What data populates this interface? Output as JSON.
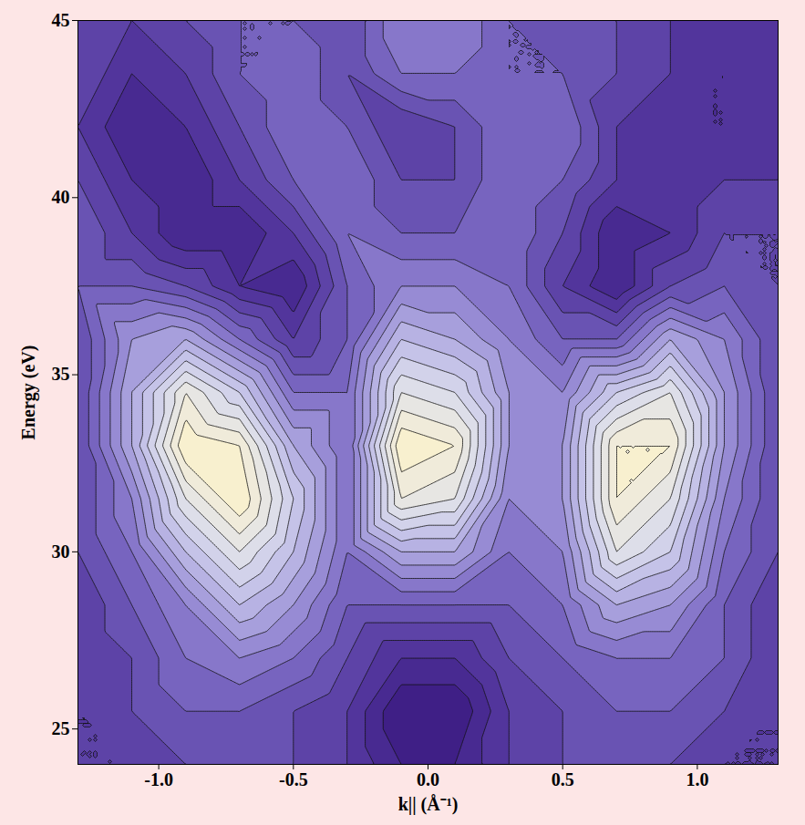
{
  "chart_data": {
    "type": "contour",
    "x_label": "k|| (Å⁻¹)",
    "y_label": "Energy (eV)",
    "xlim": [
      -1.3,
      1.3
    ],
    "ylim": [
      24,
      45
    ],
    "xticks": [
      {
        "value": -1,
        "label": "-1.0"
      },
      {
        "value": -0.5,
        "label": "-0.5"
      },
      {
        "value": 0,
        "label": "0.0"
      },
      {
        "value": 0.5,
        "label": "0.5"
      },
      {
        "value": 1,
        "label": "1.0"
      }
    ],
    "yticks": [
      25,
      30,
      35,
      40,
      45
    ],
    "x": [
      -1.3,
      -1.1,
      -0.9,
      -0.7,
      -0.5,
      -0.3,
      -0.1,
      0.1,
      0.3,
      0.5,
      0.7,
      0.9,
      1.1,
      1.3
    ],
    "y": [
      24,
      25.5,
      27,
      28.5,
      30,
      31.5,
      33,
      34.5,
      36,
      37.5,
      39,
      40.5,
      42,
      43.5,
      45
    ],
    "values": [
      [
        3,
        3,
        3.5,
        3.5,
        3.5,
        3,
        2,
        2,
        3,
        3.5,
        3.5,
        3.5,
        3,
        3
      ],
      [
        3,
        3.5,
        4,
        4,
        3.5,
        3,
        1.5,
        1.5,
        3,
        3.5,
        4,
        4,
        3.5,
        3
      ],
      [
        3,
        3.5,
        4.5,
        5,
        4.5,
        3.5,
        2.5,
        2.5,
        3.5,
        4,
        4.5,
        4.5,
        4,
        3
      ],
      [
        3,
        4,
        5,
        6.5,
        5.5,
        4,
        4,
        4,
        4,
        4.5,
        6,
        5.5,
        4,
        3
      ],
      [
        3.5,
        4.5,
        6.5,
        8,
        6.5,
        4.5,
        6,
        6,
        4.5,
        5,
        8,
        7,
        4.5,
        3.5
      ],
      [
        3.5,
        5,
        8,
        9.5,
        7,
        4.5,
        8.5,
        8,
        5,
        5.5,
        9,
        8,
        5,
        3.5
      ],
      [
        3.5,
        6,
        9.5,
        9,
        6,
        4.5,
        9.5,
        9,
        5.5,
        5.5,
        9,
        9,
        5.5,
        3.5
      ],
      [
        3.5,
        6,
        8.5,
        7,
        4.5,
        4.5,
        8,
        7.5,
        5.5,
        5,
        7,
        8,
        5.5,
        3.5
      ],
      [
        3.5,
        5.5,
        6,
        4.5,
        3,
        4,
        6.5,
        6,
        5,
        4,
        4,
        6,
        5,
        3.5
      ],
      [
        4,
        4,
        3.5,
        2.5,
        2,
        4,
        5,
        5,
        4.5,
        3,
        2,
        3.5,
        4,
        3.5
      ],
      [
        4,
        3,
        2,
        2,
        3,
        4.5,
        4,
        4,
        4.5,
        3.5,
        2,
        2.5,
        3.5,
        3.5
      ],
      [
        3.5,
        2.5,
        2,
        3,
        4,
        4.5,
        3.5,
        3.5,
        4.5,
        4,
        3,
        2.5,
        3,
        3
      ],
      [
        3,
        2,
        2.5,
        3.5,
        4.5,
        4,
        3,
        3.5,
        4.5,
        4.5,
        3,
        2.5,
        2.5,
        3
      ],
      [
        3.5,
        2.5,
        3,
        4,
        4.5,
        3.5,
        4.5,
        4.5,
        4,
        4,
        3.5,
        3,
        2.5,
        3
      ],
      [
        3.5,
        3,
        3.5,
        4,
        4,
        3.5,
        5,
        5,
        4,
        3.5,
        3.5,
        3,
        2.5,
        3
      ]
    ]
  }
}
